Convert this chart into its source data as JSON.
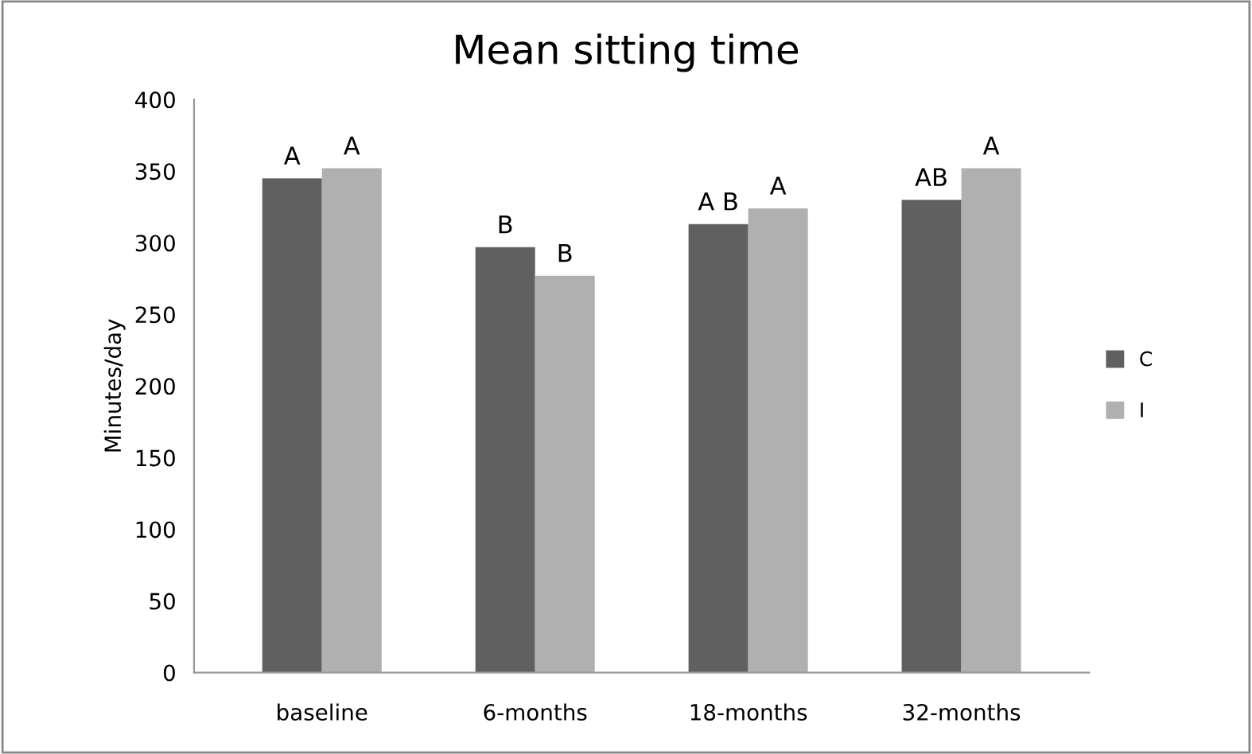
{
  "chart_data": {
    "type": "bar",
    "title": "Mean sitting time",
    "ylabel": "Minutes/day",
    "categories": [
      "baseline",
      "6-months",
      "18-months",
      "32-months"
    ],
    "series": [
      {
        "name": "C",
        "color": "#606060",
        "values": [
          345,
          297,
          313,
          330
        ],
        "value_labels": [
          "A",
          "B",
          "A B",
          "AB"
        ]
      },
      {
        "name": "I",
        "color": "#b0b0b0",
        "values": [
          352,
          277,
          324,
          352
        ],
        "value_labels": [
          "A",
          "B",
          "A",
          "A"
        ]
      }
    ],
    "ylim": [
      0,
      400
    ],
    "yticks": [
      0,
      50,
      100,
      150,
      200,
      250,
      300,
      350,
      400
    ],
    "grid": false,
    "legend": "right"
  }
}
